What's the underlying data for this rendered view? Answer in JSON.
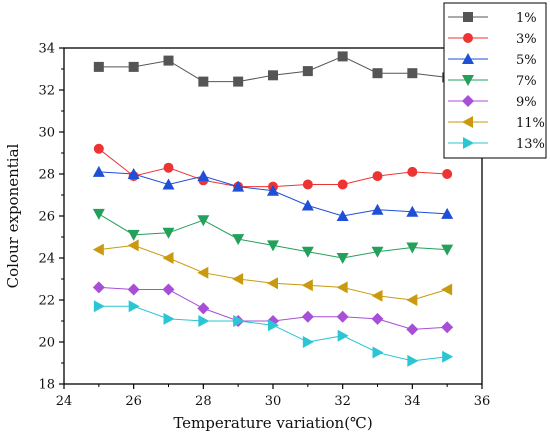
{
  "chart_data": {
    "type": "line",
    "xlabel": "Temperature variation(℃)",
    "ylabel": "Colour exponential",
    "xlim": [
      24,
      36
    ],
    "ylim": [
      18,
      34
    ],
    "xticks": [
      24,
      26,
      28,
      30,
      32,
      34,
      36
    ],
    "yticks": [
      18,
      20,
      22,
      24,
      26,
      28,
      30,
      32,
      34
    ],
    "grid": false,
    "legend_position": "top-right",
    "x": [
      25,
      26,
      27,
      28,
      29,
      30,
      31,
      32,
      33,
      34,
      35
    ],
    "series": [
      {
        "name": "1%",
        "color": "#555555",
        "marker": "square",
        "values": [
          33.1,
          33.1,
          33.4,
          32.4,
          32.4,
          32.7,
          32.9,
          33.6,
          32.8,
          32.8,
          32.6
        ]
      },
      {
        "name": "3%",
        "color": "#ee3333",
        "marker": "circle",
        "values": [
          29.2,
          27.9,
          28.3,
          27.7,
          27.4,
          27.4,
          27.5,
          27.5,
          27.9,
          28.1,
          28.0
        ]
      },
      {
        "name": "5%",
        "color": "#1f4fd6",
        "marker": "triangle-up",
        "values": [
          28.1,
          28.0,
          27.5,
          27.9,
          27.4,
          27.2,
          26.5,
          26.0,
          26.3,
          26.2,
          26.1
        ]
      },
      {
        "name": "7%",
        "color": "#23a05a",
        "marker": "triangle-down",
        "values": [
          26.1,
          25.1,
          25.2,
          25.8,
          24.9,
          24.6,
          24.3,
          24.0,
          24.3,
          24.5,
          24.4
        ]
      },
      {
        "name": "9%",
        "color": "#a84fd8",
        "marker": "diamond",
        "values": [
          22.6,
          22.5,
          22.5,
          21.6,
          21.0,
          21.0,
          21.2,
          21.2,
          21.1,
          20.6,
          20.7
        ]
      },
      {
        "name": "11%",
        "color": "#c99a0e",
        "marker": "triangle-left",
        "values": [
          24.4,
          24.6,
          24.0,
          23.3,
          23.0,
          22.8,
          22.7,
          22.6,
          22.2,
          22.0,
          22.5
        ]
      },
      {
        "name": "13%",
        "color": "#2ac6d4",
        "marker": "triangle-right",
        "values": [
          21.7,
          21.7,
          21.1,
          21.0,
          21.0,
          20.8,
          20.0,
          20.3,
          19.5,
          19.1,
          19.3
        ]
      }
    ]
  }
}
